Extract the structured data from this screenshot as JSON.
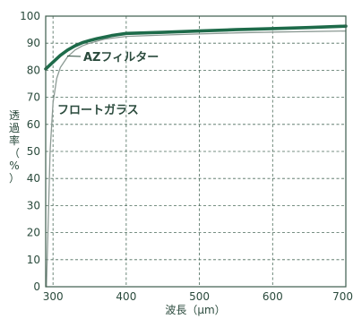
{
  "chart_data": {
    "type": "line",
    "xlabel": "波長（μm）",
    "ylabel": "透過率（%）",
    "xlim": [
      290,
      700
    ],
    "ylim": [
      0,
      100
    ],
    "x_ticks": [
      300,
      400,
      500,
      600,
      700
    ],
    "y_ticks": [
      0,
      10,
      20,
      30,
      40,
      50,
      60,
      70,
      80,
      90,
      100
    ],
    "grid": true,
    "series": [
      {
        "name": "AZフィルター",
        "color": "#1e6b4a",
        "x": [
          290,
          300,
          310,
          320,
          330,
          340,
          350,
          360,
          380,
          400,
          450,
          500,
          550,
          600,
          650,
          700
        ],
        "y": [
          80.5,
          83,
          85.5,
          87.5,
          89,
          90.2,
          91,
          91.7,
          92.8,
          93.6,
          94,
          94.5,
          95,
          95.4,
          95.8,
          96.3
        ]
      },
      {
        "name": "フロートガラス",
        "color": "#8c9a94",
        "x": [
          291,
          293,
          296,
          300,
          305,
          310,
          320,
          330,
          340,
          350,
          370,
          400,
          450,
          500,
          550,
          600,
          650,
          700
        ],
        "y": [
          0,
          20,
          50,
          68,
          77,
          81,
          85,
          87.5,
          89,
          90,
          91.5,
          92.5,
          93,
          93.4,
          93.8,
          94.1,
          94.3,
          94.5
        ]
      }
    ]
  }
}
